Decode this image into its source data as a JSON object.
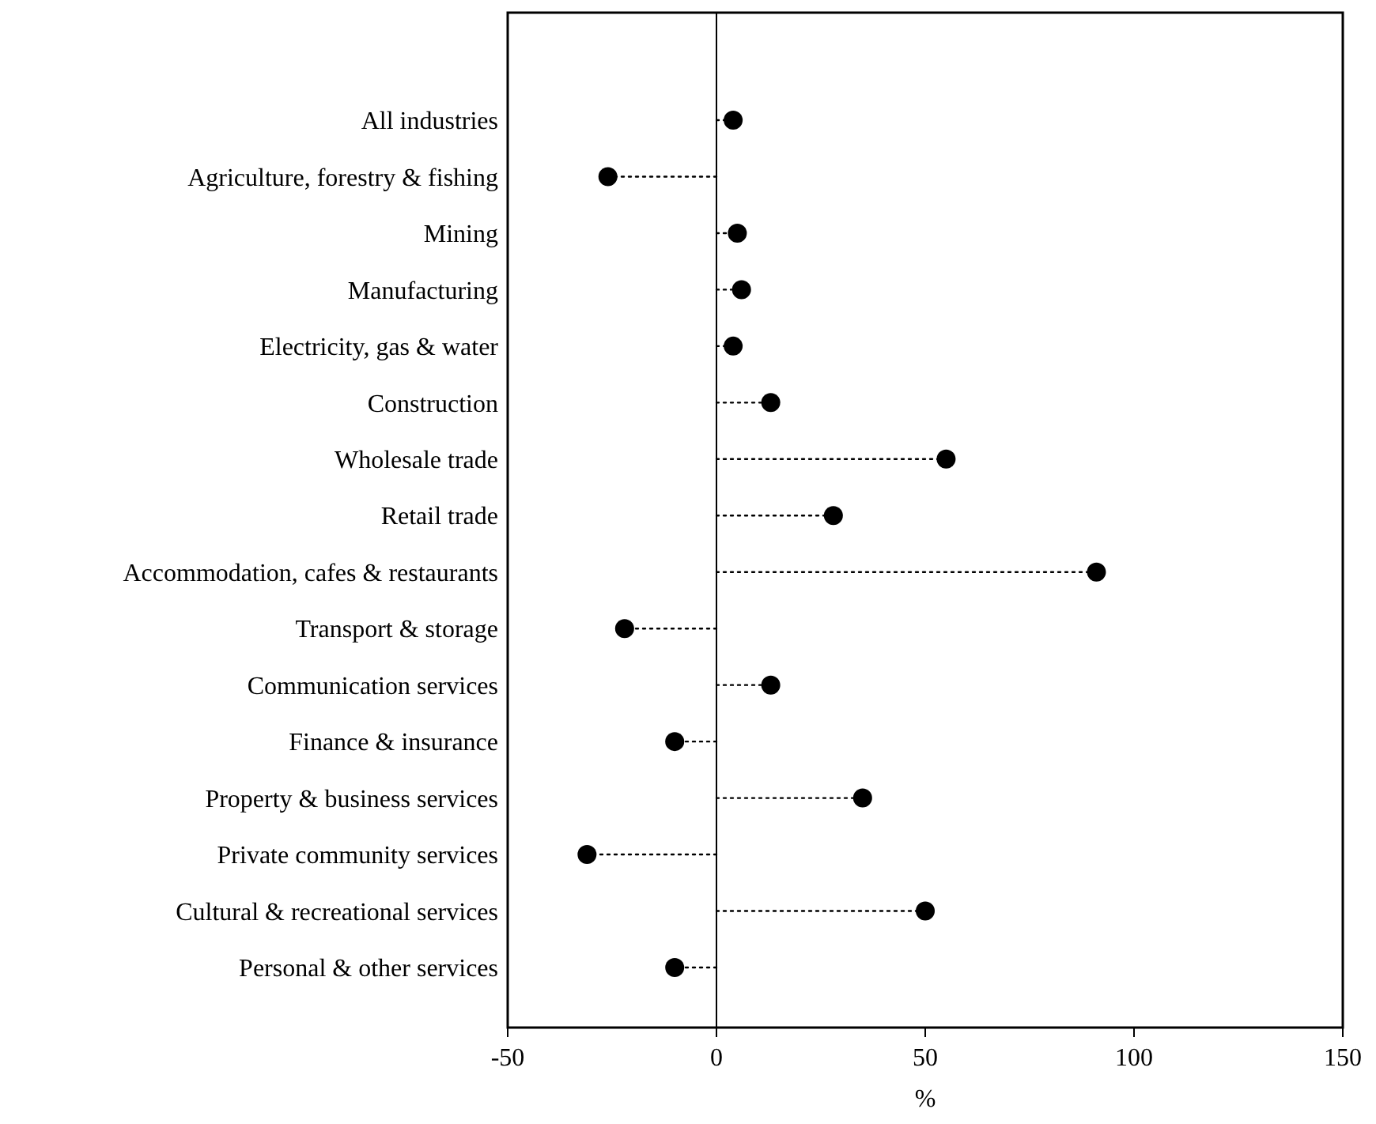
{
  "chart_data": {
    "type": "lollipop",
    "orientation": "horizontal",
    "xlabel": "%",
    "categories": [
      "All industries",
      "Agriculture, forestry & fishing",
      "Mining",
      "Manufacturing",
      "Electricity, gas & water",
      "Construction",
      "Wholesale trade",
      "Retail trade",
      "Accommodation, cafes & restaurants",
      "Transport & storage",
      "Communication services",
      "Finance & insurance",
      "Property & business services",
      "Private community services",
      "Cultural & recreational services",
      "Personal & other services"
    ],
    "values": [
      4,
      -26,
      5,
      6,
      4,
      13,
      55,
      28,
      91,
      -22,
      13,
      -10,
      35,
      -31,
      50,
      -10
    ],
    "color": "#000000",
    "marker": "circle",
    "line_style": "dotted",
    "xlim": [
      -50,
      150
    ],
    "xticks": [
      -50,
      0,
      50,
      100,
      150
    ],
    "ref_lines": [
      {
        "axis": "x",
        "value": 0,
        "color": "#000000",
        "line_style": "solid"
      }
    ]
  }
}
